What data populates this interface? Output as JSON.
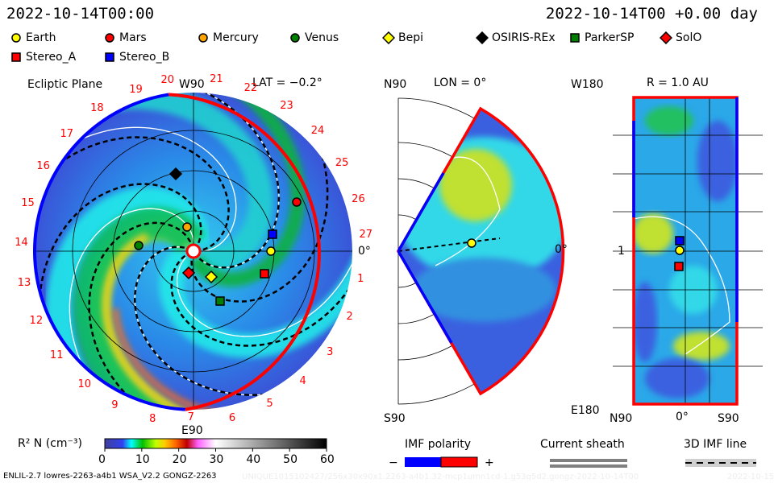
{
  "header": {
    "datetime": "2022-10-14T00:00",
    "run_time": "2022-10-14T00 +0.00 day"
  },
  "legend": [
    {
      "label": "Earth",
      "shape": "circle",
      "color": "#ffff00"
    },
    {
      "label": "Mars",
      "shape": "circle",
      "color": "#ff0000"
    },
    {
      "label": "Mercury",
      "shape": "circle",
      "color": "#ffa500"
    },
    {
      "label": "Venus",
      "shape": "circle",
      "color": "#008000"
    },
    {
      "label": "Bepi",
      "shape": "diamond",
      "color": "#ffff00"
    },
    {
      "label": "OSIRIS-REx",
      "shape": "diamond",
      "color": "#000000"
    },
    {
      "label": "ParkerSP",
      "shape": "square",
      "color": "#008000"
    },
    {
      "label": "SolO",
      "shape": "diamond",
      "color": "#ff0000"
    },
    {
      "label": "Stereo_A",
      "shape": "square",
      "color": "#ff0000"
    },
    {
      "label": "Stereo_B",
      "shape": "square",
      "color": "#0000ff"
    }
  ],
  "ecliptic": {
    "title": "Ecliptic Plane",
    "top_label": "W90",
    "bottom_label": "E90",
    "right_label": "0°",
    "lat": "LAT = −0.2°",
    "sectors": [
      "1",
      "2",
      "3",
      "4",
      "5",
      "6",
      "7",
      "8",
      "9",
      "10",
      "11",
      "12",
      "13",
      "14",
      "15",
      "16",
      "17",
      "18",
      "19",
      "20",
      "21",
      "22",
      "23",
      "24",
      "25",
      "26",
      "27"
    ]
  },
  "meridional": {
    "top_label": "N90",
    "bottom_label": "S90",
    "right_label": "0°",
    "lon": "LON = 0°"
  },
  "radial": {
    "top_left": "W180",
    "title": "R = 1.0 AU",
    "mid_left": "1",
    "bottom_left": "E180",
    "x_labels": [
      "N90",
      "0°",
      "S90"
    ]
  },
  "colorbar": {
    "label": "R² N (cm⁻³)",
    "ticks": [
      "0",
      "10",
      "20",
      "30",
      "40",
      "50",
      "60"
    ]
  },
  "imf": {
    "title": "IMF polarity",
    "minus": "−",
    "plus": "+",
    "neg_color": "#0000ff",
    "pos_color": "#ff0000"
  },
  "sheath": {
    "title": "Current sheath"
  },
  "imfline": {
    "title": "3D IMF line"
  },
  "footer": {
    "model": "ENLIL-2.7 lowres-2263-a4b1 WSA_V2.2 GONGZ-2263",
    "run_id": "UNIQUE1015102427/256x30x90x1.2263-a4b1.32-mcp1umn1cd-1.g53q5d2.gongz-2022-10-14T00",
    "date": "2022-10-15"
  }
}
